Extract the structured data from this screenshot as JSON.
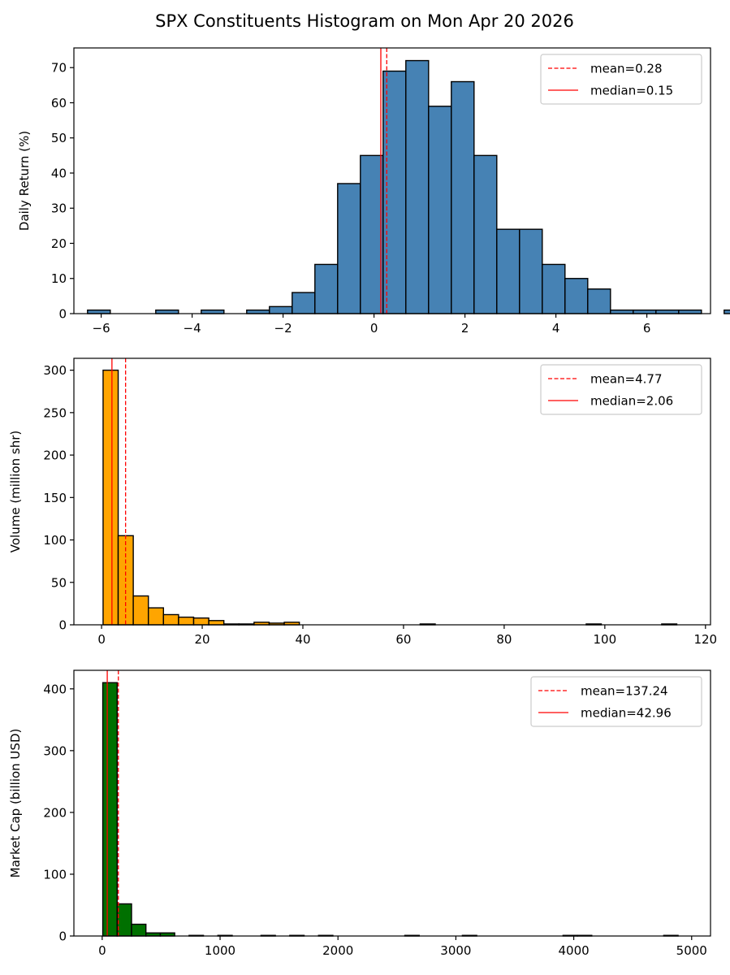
{
  "figure": {
    "title": "SPX Constituents Histogram on Mon Apr 20 2026"
  },
  "chart_data": [
    {
      "type": "histogram",
      "id": "ret",
      "ylabel": "Daily Return (%)",
      "xlabel": "",
      "bar_color": "#4682b4",
      "bin_start": -6.3,
      "bin_width": 0.5,
      "counts": [
        1,
        0,
        0,
        1,
        0,
        1,
        0,
        1,
        2,
        6,
        14,
        37,
        45,
        69,
        72,
        59,
        66,
        45,
        24,
        24,
        14,
        10,
        7,
        1,
        1,
        1,
        1,
        0,
        1
      ],
      "xlim": [
        -6.6,
        7.4
      ],
      "ylim": [
        0,
        75.6
      ],
      "xticks": [
        -6,
        -4,
        -2,
        0,
        2,
        4,
        6
      ],
      "xtick_labels": [
        "−6",
        "−4",
        "−2",
        "0",
        "2",
        "4",
        "6"
      ],
      "yticks": [
        0,
        10,
        20,
        30,
        40,
        50,
        60,
        70
      ],
      "mean": 0.28,
      "median": 0.15,
      "legend": [
        "mean=0.28",
        "median=0.15"
      ],
      "legend_loc": "upper right"
    },
    {
      "type": "histogram",
      "id": "vol",
      "ylabel": "Volume (million shr)",
      "xlabel": "",
      "bar_color": "#ffa500",
      "bin_start": 0.3,
      "bin_width": 3.0,
      "counts": [
        300,
        105,
        34,
        20,
        12,
        9,
        8,
        5,
        1,
        1,
        3,
        2,
        3,
        0,
        0,
        0,
        0,
        0,
        0,
        0,
        0,
        1,
        0,
        0,
        0,
        0,
        0,
        0,
        0,
        0,
        0,
        0,
        1,
        0,
        0,
        0,
        0,
        1
      ],
      "xlim": [
        -5.5,
        121.0
      ],
      "ylim": [
        0,
        314
      ],
      "xticks": [
        0,
        20,
        40,
        60,
        80,
        100,
        120
      ],
      "xtick_labels": [
        "0",
        "20",
        "40",
        "60",
        "80",
        "100",
        "120"
      ],
      "yticks": [
        0,
        50,
        100,
        150,
        200,
        250,
        300
      ],
      "mean": 4.77,
      "median": 2.06,
      "legend": [
        "mean=4.77",
        "median=2.06"
      ],
      "legend_loc": "upper right"
    },
    {
      "type": "histogram",
      "id": "cap",
      "ylabel": "Market Cap (billion USD)",
      "xlabel": "",
      "bar_color": "#007000",
      "bin_start": 5,
      "bin_width": 122,
      "counts": [
        410,
        52,
        19,
        5,
        5,
        0,
        1,
        0,
        1,
        0,
        0,
        1,
        0,
        1,
        0,
        1,
        0,
        0,
        0,
        0,
        0,
        1,
        0,
        0,
        0,
        1,
        0,
        0,
        0,
        0,
        0,
        0,
        1,
        1,
        0,
        0,
        0,
        0,
        0,
        1
      ],
      "xlim": [
        -240,
        5160
      ],
      "ylim": [
        0,
        430
      ],
      "xticks": [
        0,
        1000,
        2000,
        3000,
        4000,
        5000
      ],
      "xtick_labels": [
        "0",
        "1000",
        "2000",
        "3000",
        "4000",
        "5000"
      ],
      "yticks": [
        0,
        100,
        200,
        300,
        400
      ],
      "mean": 137.24,
      "median": 42.96,
      "legend": [
        "mean=137.24",
        "median=42.96"
      ],
      "legend_loc": "upper right"
    }
  ],
  "colors": {
    "edge": "#000000",
    "mean_line": "#ff0000",
    "median_line": "#ff0000"
  }
}
